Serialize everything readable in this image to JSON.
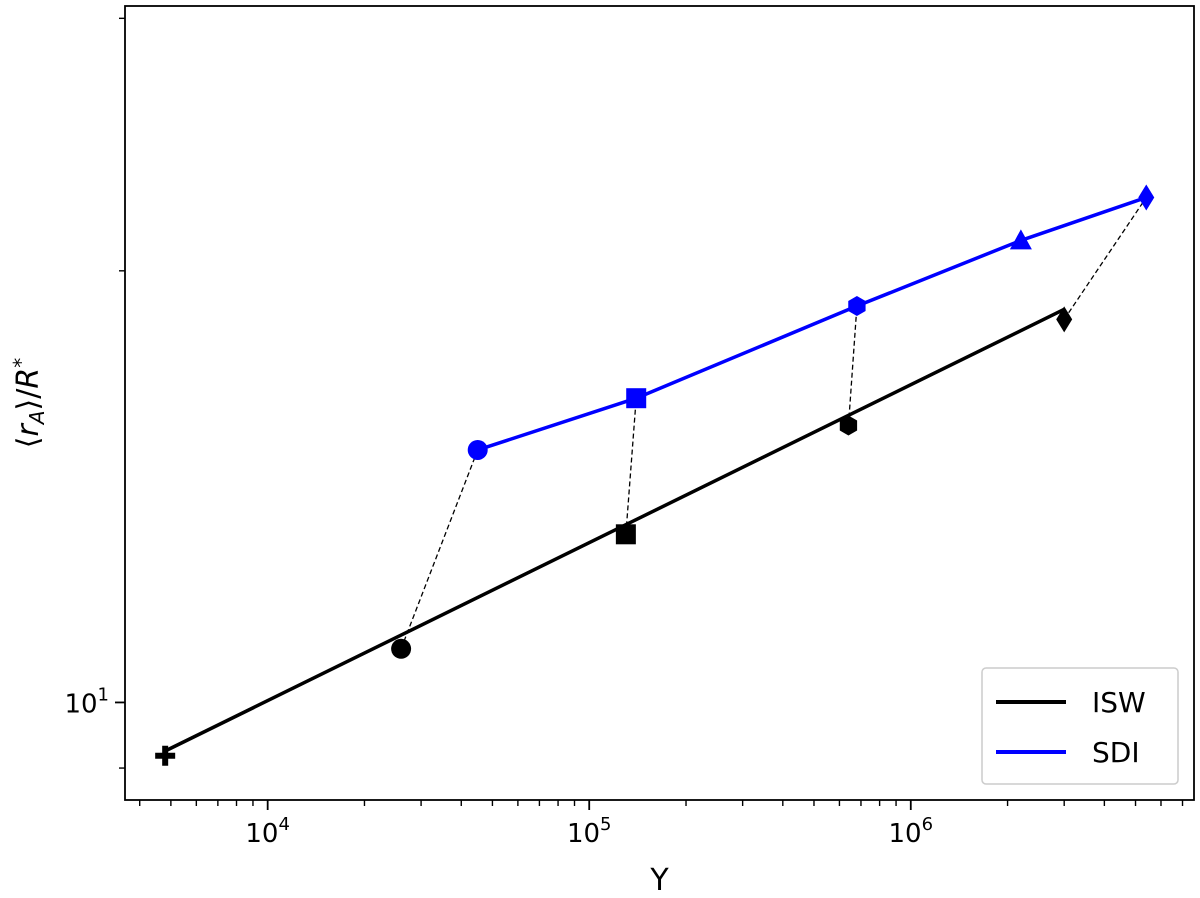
{
  "chart_data": {
    "type": "line",
    "xlabel": "Y",
    "ylabel_parts": {
      "open": "⟨",
      "var": "r",
      "sub": "A",
      "close": "⟩/",
      "var2": "R",
      "sup": "*"
    },
    "x_scale": "log",
    "y_scale": "log",
    "xlim": [
      3600,
      7600000
    ],
    "ylim": [
      8.55,
      30.6
    ],
    "x_major_ticks": [
      {
        "value": 10000,
        "base": "10",
        "exp": "4"
      },
      {
        "value": 100000,
        "base": "10",
        "exp": "5"
      },
      {
        "value": 1000000,
        "base": "10",
        "exp": "6"
      }
    ],
    "y_major_ticks": [
      {
        "value": 10,
        "base": "10",
        "exp": "1"
      }
    ],
    "grid": false,
    "legend": {
      "position": "bottom-right"
    },
    "series": [
      {
        "name": "ISW",
        "color": "#000000",
        "line_x": [
          4800,
          3000000
        ],
        "line_y": [
          9.25,
          18.8
        ],
        "points": [
          {
            "x": 4800,
            "y": 9.18,
            "marker": "plus"
          },
          {
            "x": 26000,
            "y": 10.9,
            "marker": "circle"
          },
          {
            "x": 130000,
            "y": 13.1,
            "marker": "square"
          },
          {
            "x": 640000,
            "y": 15.6,
            "marker": "hexagon"
          },
          {
            "x": 3000000,
            "y": 18.5,
            "marker": "diamond"
          }
        ]
      },
      {
        "name": "SDI",
        "color": "#0000ff",
        "line_x": [
          45000,
          140000,
          680000,
          2200000,
          5400000
        ],
        "line_y": [
          15.0,
          16.3,
          18.9,
          21.0,
          22.5
        ],
        "points": [
          {
            "x": 45000,
            "y": 15.0,
            "marker": "circle"
          },
          {
            "x": 140000,
            "y": 16.3,
            "marker": "square"
          },
          {
            "x": 680000,
            "y": 18.9,
            "marker": "hexagon"
          },
          {
            "x": 2200000,
            "y": 21.0,
            "marker": "triangle"
          },
          {
            "x": 5400000,
            "y": 22.5,
            "marker": "diamond"
          }
        ]
      }
    ],
    "connectors": [
      {
        "x1": 26000,
        "y1": 10.9,
        "x2": 45000,
        "y2": 15.0
      },
      {
        "x1": 130000,
        "y1": 13.1,
        "x2": 140000,
        "y2": 16.3
      },
      {
        "x1": 640000,
        "y1": 15.6,
        "x2": 680000,
        "y2": 18.9
      },
      {
        "x1": 3000000,
        "y1": 18.5,
        "x2": 5400000,
        "y2": 22.5
      }
    ]
  }
}
